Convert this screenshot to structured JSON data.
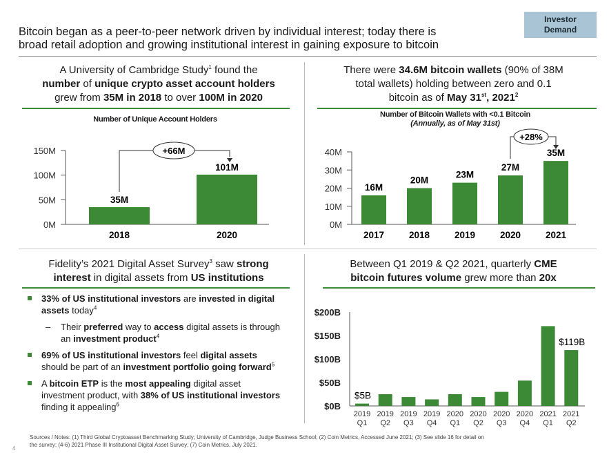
{
  "badge": {
    "line1": "Investor",
    "line2": "Demand"
  },
  "headline": {
    "line1": "Bitcoin began as a peer-to-peer network driven by individual interest; today there is",
    "line2": "broad retail adoption and growing institutional interest in gaining exposure to bitcoin"
  },
  "q1": {
    "t1a": "A University of Cambridge Study",
    "t1sup": "1",
    "t1b": " found the",
    "t2a": "number",
    "t2b": " of ",
    "t2c": "unique crypto asset account holders",
    "t3a": "grew from ",
    "t3b": "35M in 2018",
    "t3c": " to over ",
    "t3d": "100M in 2020",
    "chart_title": "Number of Unique Account Holders",
    "growth_label": "+66M"
  },
  "q2": {
    "t1a": "There were ",
    "t1b": "34.6M bitcoin wallets",
    "t1c": " (90% of 38M",
    "t2": "total wallets) holding between zero and 0.1",
    "t3a": "bitcoin as of ",
    "t3b": "May 31",
    "t3sup": "st",
    "t3c": ", 2021",
    "t3sup2": "2",
    "chart_title": "Number of Bitcoin Wallets with <0.1 Bitcoin",
    "chart_sub": "(Annually, as of May 31st)",
    "growth_label": "+28%"
  },
  "q3": {
    "t1a": "Fidelity’s 2021 Digital Asset Survey",
    "t1sup": "3",
    "t1b": " saw ",
    "t1c": "strong",
    "t2a": "interest",
    "t2b": " in digital assets from ",
    "t2c": "US institutions",
    "b1a": "33% of US institutional investors",
    "b1b": " are ",
    "b1c": "invested in digital assets",
    "b1d": " today",
    "b1sup": "4",
    "s1dash": "–",
    "s1a": "Their ",
    "s1b": "preferred",
    "s1c": " way to ",
    "s1d": "access",
    "s1e": " digital assets is through an ",
    "s1f": "investment product",
    "s1sup": "4",
    "b2a": "69% of US institutional investors",
    "b2b": " feel ",
    "b2c": "digital assets",
    "b2d": " should be part of an ",
    "b2e": "investment portfolio going forward",
    "b2sup": "5",
    "b3a": "A ",
    "b3b": "bitcoin ETP",
    "b3c": " is the ",
    "b3d": "most appealing",
    "b3e": " digital asset investment product, with ",
    "b3f": "38% of US institutional investors",
    "b3g": " finding it appealing",
    "b3sup": "6"
  },
  "q4": {
    "t1a": "Between Q1 2019 & Q2 2021, quarterly ",
    "t1b": "CME",
    "t2a": "bitcoin futures volume",
    "t2b": " grew more than ",
    "t2c": "20x"
  },
  "footer": {
    "line1": "Sources / Notes: (1) Third Global Cryptoasset Benchmarking Study; University of Cambridge, Judge Business School; (2) Coin Metrics, Accessed June 2021; (3) See slide 16 for detail on",
    "line2": "the survey; (4-6) 2021 Phase III Institutional Digital Asset Survey; (7) Coin Metrics, July 2021."
  },
  "page_number": "4",
  "colors": {
    "bar": "#3c8a35",
    "badge": "#a9c4d4",
    "rule_green": "#3c8a35"
  },
  "chart_data": [
    {
      "type": "bar",
      "title": "Number of Unique Account Holders",
      "categories": [
        "2018",
        "2020"
      ],
      "values": [
        35,
        101
      ],
      "data_labels": [
        "35M",
        "101M"
      ],
      "yticks": [
        "0M",
        "50M",
        "100M",
        "150M"
      ],
      "ylim": [
        0,
        150
      ],
      "annotation": "+66M"
    },
    {
      "type": "bar",
      "title": "Number of Bitcoin Wallets with <0.1 Bitcoin",
      "subtitle": "(Annually, as of May 31st)",
      "categories": [
        "2017",
        "2018",
        "2019",
        "2020",
        "2021"
      ],
      "values": [
        16,
        20,
        23,
        27,
        35
      ],
      "data_labels": [
        "16M",
        "20M",
        "23M",
        "27M",
        "35M"
      ],
      "yticks": [
        "0M",
        "10M",
        "20M",
        "30M",
        "40M"
      ],
      "ylim": [
        0,
        40
      ],
      "annotation": "+28%"
    },
    {
      "type": "bar",
      "categories": [
        "2019 Q1",
        "2019 Q2",
        "2019 Q3",
        "2019 Q4",
        "2020 Q1",
        "2020 Q2",
        "2020 Q3",
        "2020 Q4",
        "2021 Q1",
        "2021 Q2"
      ],
      "cat_year": [
        "2019",
        "2019",
        "2019",
        "2019",
        "2020",
        "2020",
        "2020",
        "2020",
        "2021",
        "2021"
      ],
      "cat_q": [
        "Q1",
        "Q2",
        "Q3",
        "Q4",
        "Q1",
        "Q2",
        "Q3",
        "Q4",
        "Q1",
        "Q2"
      ],
      "values": [
        5,
        25,
        19,
        14,
        25,
        19,
        30,
        54,
        170,
        119
      ],
      "data_labels": {
        "0": "$5B",
        "9": "$119B"
      },
      "yticks": [
        "$0B",
        "$50B",
        "$100B",
        "$150B",
        "$200B"
      ],
      "ylim": [
        0,
        200
      ]
    }
  ]
}
